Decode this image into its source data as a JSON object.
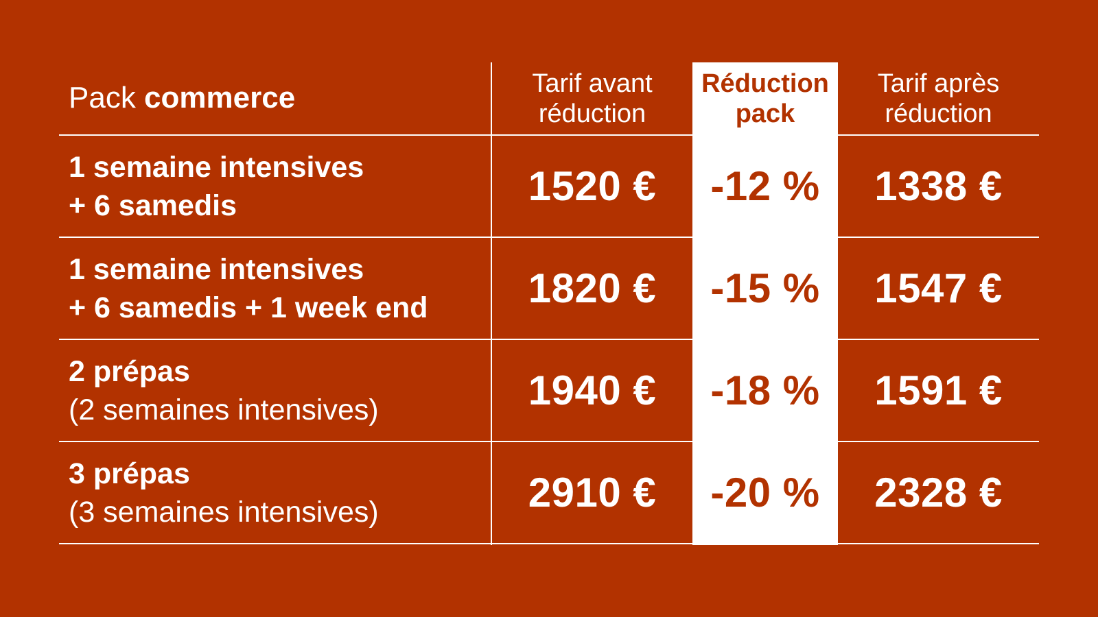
{
  "colors": {
    "background": "#b23200",
    "highlight_column": "#ffffff",
    "text_light": "#ffffff",
    "text_accent": "#b23200"
  },
  "table": {
    "title_prefix": "Pack ",
    "title_bold": "commerce",
    "headers": {
      "before": "Tarif avant\nréduction",
      "reduction": "Réduction\npack",
      "after": "Tarif après\nréduction"
    },
    "rows": [
      {
        "line1": "1 semaine intensives",
        "line2": "+ 6 samedis",
        "line2_style": "bold",
        "before": "1520 €",
        "reduction": "-12 %",
        "after": "1338 €"
      },
      {
        "line1": "1 semaine intensives",
        "line2": "+ 6 samedis + 1 week end",
        "line2_style": "bold",
        "before": "1820 €",
        "reduction": "-15 %",
        "after": "1547 €"
      },
      {
        "line1": "2 prépas",
        "line2": "(2 semaines intensives)",
        "line2_style": "normal",
        "before": "1940 €",
        "reduction": "-18 %",
        "after": "1591 €"
      },
      {
        "line1": "3 prépas",
        "line2": "(3 semaines intensives)",
        "line2_style": "normal",
        "before": "2910 €",
        "reduction": "-20 %",
        "after": "2328 €"
      }
    ]
  }
}
